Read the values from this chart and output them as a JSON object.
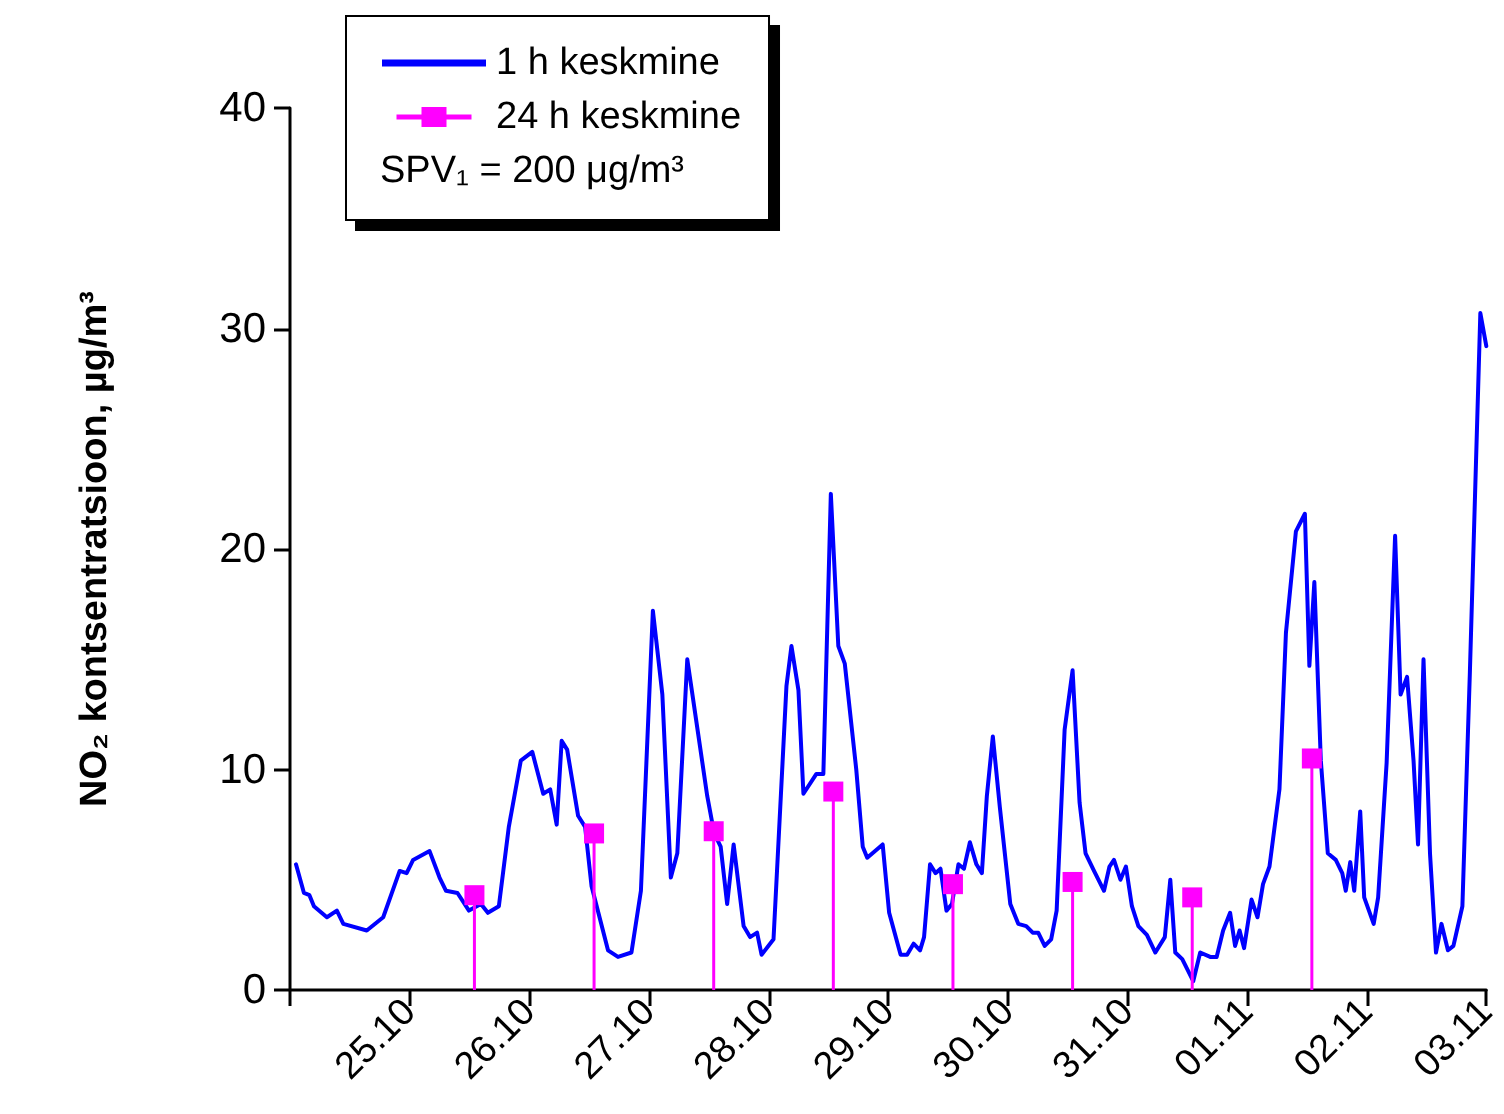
{
  "chart_data": {
    "type": "line",
    "ylabel": "NO₂ kontsentratsioon, µg/m³",
    "xlim": [
      "--10-24",
      "--11-03"
    ],
    "xticks": [
      {
        "value": "--10-24",
        "label": null
      },
      {
        "value": "--10-25",
        "label": "25.10"
      },
      {
        "value": "--10-26",
        "label": "26.10"
      },
      {
        "value": "--10-27",
        "label": "27.10"
      },
      {
        "value": "--10-28",
        "label": "28.10"
      },
      {
        "value": "--10-29",
        "label": "29.10"
      },
      {
        "value": "--10-30",
        "label": "30.10"
      },
      {
        "value": "--10-31",
        "label": "31.10"
      },
      {
        "value": "--11-01",
        "label": "01.11"
      },
      {
        "value": "--11-02",
        "label": "02.11"
      },
      {
        "value": "--11-03",
        "label": "03.11"
      }
    ],
    "ylim": [
      0,
      40
    ],
    "yticks": [
      0,
      10,
      20,
      30,
      40
    ],
    "legend": "top left",
    "annotations": [
      "SPV₁ = 200 μg/m³"
    ],
    "series": [
      {
        "name": "1 h keskmine",
        "color": "#0000ff",
        "marker": "none",
        "x": [
          "--10-24T01:12",
          "--10-24T02:48",
          "--10-24T03:54",
          "--10-24T04:48",
          "--10-24T07:24",
          "--10-24T09:24",
          "--10-24T10:42",
          "--10-24T15:24",
          "--10-24T18:42",
          "--10-24T22:00",
          "--10-24T23:24",
          "--10-25T00:42",
          "--10-25T04:00",
          "--10-25T06:00",
          "--10-25T07:18",
          "--10-25T09:36",
          "--10-25T11:54",
          "--10-25T14:18",
          "--10-25T15:42",
          "--10-25T17:54",
          "--10-25T19:54",
          "--10-25T22:18",
          "--10-26T00:36",
          "--10-26T02:48",
          "--10-26T04:12",
          "--10-26T05:30",
          "--10-26T06:30",
          "--10-26T07:36",
          "--10-26T09:48",
          "--10-26T11:12",
          "--10-26T12:30",
          "--10-26T15:48",
          "--10-26T17:48",
          "--10-26T20:30",
          "--10-26T22:24",
          "--10-27T00:48",
          "--10-27T02:42",
          "--10-27T04:24",
          "--10-27T05:42",
          "--10-27T07:42",
          "--10-27T09:42",
          "--10-27T11:42",
          "--10-27T13:06",
          "--10-27T14:24",
          "--10-27T15:42",
          "--10-27T17:00",
          "--10-27T19:00",
          "--10-27T20:18",
          "--10-27T21:42",
          "--10-27T22:36",
          "--10-28T01:00",
          "--10-28T03:36",
          "--10-28T04:36",
          "--10-28T06:00",
          "--10-28T07:00",
          "--10-28T09:36",
          "--10-28T11:00",
          "--10-28T12:30",
          "--10-28T14:00",
          "--10-28T15:18",
          "--10-28T17:36",
          "--10-28T18:54",
          "--10-28T19:48",
          "--10-28T22:54",
          "--10-29T00:12",
          "--10-29T02:30",
          "--10-29T03:48",
          "--10-29T05:06",
          "--10-29T06:24",
          "--10-29T07:12",
          "--10-29T08:24",
          "--10-29T09:30",
          "--10-29T10:30",
          "--10-29T11:42",
          "--10-29T12:48",
          "--10-29T14:06",
          "--10-29T15:12",
          "--10-29T16:24",
          "--10-29T17:42",
          "--10-29T18:48",
          "--10-29T19:48",
          "--10-29T21:00",
          "--10-29T22:24",
          "--10-30T00:30",
          "--10-30T02:06",
          "--10-30T03:42",
          "--10-30T05:00",
          "--10-30T06:06",
          "--10-30T07:24",
          "--10-30T08:42",
          "--10-30T09:48",
          "--10-30T11:24",
          "--10-30T13:00",
          "--10-30T14:24",
          "--10-30T15:36",
          "--10-30T17:18",
          "--10-30T19:18",
          "--10-30T20:24",
          "--10-30T21:18",
          "--10-30T22:36",
          "--10-30T23:42",
          "--10-31T00:54",
          "--10-31T02:12",
          "--10-31T03:54",
          "--10-31T05:36",
          "--10-31T07:30",
          "--10-31T08:36",
          "--10-31T09:36",
          "--10-31T11:00",
          "--10-31T13:12",
          "--10-31T14:36",
          "--10-31T16:36",
          "--10-31T17:54",
          "--10-31T19:12",
          "--10-31T20:36",
          "--10-31T21:36",
          "--10-31T22:30",
          "--10-31T23:24",
          "--11-01T00:54",
          "--11-01T02:06",
          "--11-01T03:12",
          "--11-01T04:30",
          "--11-01T06:30",
          "--11-01T07:48",
          "--11-01T09:48",
          "--11-01T11:36",
          "--11-01T12:30",
          "--11-01T13:30",
          "--11-01T14:48",
          "--11-01T16:12",
          "--11-01T17:48",
          "--11-01T19:06",
          "--11-01T19:48",
          "--11-01T20:42",
          "--11-01T21:30",
          "--11-01T22:42",
          "--11-01T23:30",
          "--11-02T01:24",
          "--11-02T02:18",
          "--11-02T04:00",
          "--11-02T05:42",
          "--11-02T06:48",
          "--11-02T08:06",
          "--11-02T09:24",
          "--11-02T10:18",
          "--11-02T11:24",
          "--11-02T12:42",
          "--11-02T13:54",
          "--11-02T15:00",
          "--11-02T16:18",
          "--11-02T17:24",
          "--11-02T19:12",
          "--11-02T20:42",
          "--11-02T22:48",
          "--11-03T00:00"
        ],
        "values": [
          5.7,
          4.4,
          4.3,
          3.8,
          3.3,
          3.6,
          3.0,
          2.7,
          3.3,
          5.4,
          5.3,
          5.9,
          6.3,
          5.1,
          4.5,
          4.4,
          3.6,
          3.9,
          3.5,
          3.8,
          7.4,
          10.4,
          10.8,
          8.9,
          9.1,
          7.5,
          11.3,
          10.9,
          7.9,
          7.4,
          4.7,
          1.8,
          1.5,
          1.7,
          4.5,
          17.2,
          13.4,
          5.1,
          6.2,
          15.0,
          11.9,
          8.8,
          7.1,
          6.5,
          3.9,
          6.6,
          2.9,
          2.4,
          2.6,
          1.6,
          2.3,
          13.8,
          15.6,
          13.6,
          8.9,
          9.8,
          9.8,
          22.5,
          15.6,
          14.8,
          10,
          6.5,
          6.0,
          6.6,
          3.5,
          1.6,
          1.6,
          2.1,
          1.8,
          2.4,
          5.7,
          5.3,
          5.5,
          3.6,
          3.9,
          5.7,
          5.5,
          6.7,
          5.7,
          5.3,
          8.8,
          11.5,
          8.3,
          3.9,
          3.0,
          2.9,
          2.6,
          2.6,
          2.0,
          2.3,
          3.6,
          11.8,
          14.5,
          8.5,
          6.2,
          5.4,
          4.5,
          5.6,
          5.9,
          5.0,
          5.6,
          3.8,
          2.9,
          2.5,
          1.7,
          2.4,
          5.0,
          1.7,
          1.4,
          0.4,
          1.7,
          1.5,
          1.5,
          2.7,
          3.5,
          2.0,
          2.7,
          1.9,
          4.1,
          3.3,
          4.8,
          5.6,
          9.1,
          16.2,
          20.8,
          21.6,
          14.7,
          18.5,
          10.4,
          6.2,
          5.9,
          5.3,
          4.5,
          5.8,
          4.5,
          8.1,
          4.2,
          3.0,
          4.2,
          10.3,
          20.6,
          13.4,
          14.2,
          10.4,
          6.6,
          15.0,
          6.2,
          1.7,
          3.0,
          1.8,
          2.0,
          3.8,
          14.4,
          30.7,
          29.2
        ]
      },
      {
        "name": "24 h keskmine",
        "type": "lollipop",
        "color": "#ff00ff",
        "marker": "square",
        "x": [
          "--10-25T13:00",
          "--10-26T13:00",
          "--10-27T13:00",
          "--10-28T13:00",
          "--10-29T13:00",
          "--10-30T13:00",
          "--10-31T13:00",
          "--11-01T13:00"
        ],
        "values": [
          4.3,
          7.1,
          7.2,
          9.0,
          4.8,
          4.9,
          4.2,
          10.5
        ]
      }
    ]
  }
}
